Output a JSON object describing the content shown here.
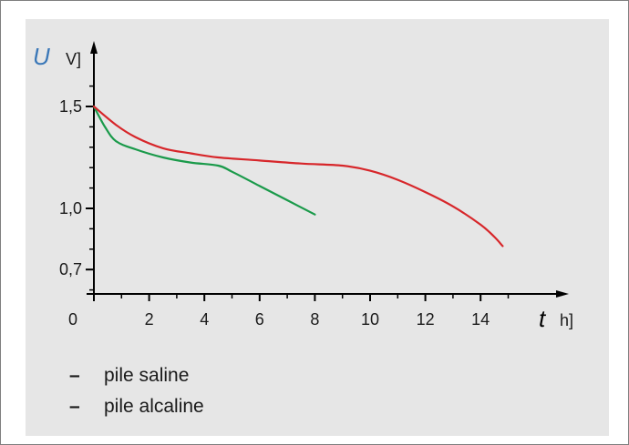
{
  "chart_data": {
    "type": "line",
    "ylabel": "U",
    "yunit": "V]",
    "xlabel": "t",
    "xunit": "h]",
    "xlim": [
      0,
      16.5
    ],
    "ylim": [
      0.6,
      1.7
    ],
    "x_ticks": [
      2,
      4,
      6,
      8,
      10,
      12,
      14
    ],
    "x_origin_label": "0",
    "y_ticks": [
      0.7,
      1.0,
      1.5
    ],
    "y_tick_labels": [
      "0,7",
      "1,0",
      "1,5"
    ],
    "series": [
      {
        "name": "pile saline",
        "color": "#1a9a4a",
        "points": [
          [
            0,
            1.5
          ],
          [
            0.4,
            1.4
          ],
          [
            0.8,
            1.33
          ],
          [
            1.5,
            1.29
          ],
          [
            2.5,
            1.25
          ],
          [
            3.5,
            1.225
          ],
          [
            4.5,
            1.21
          ],
          [
            5,
            1.18
          ],
          [
            6,
            1.11
          ],
          [
            7,
            1.04
          ],
          [
            8,
            0.97
          ]
        ]
      },
      {
        "name": "pile alcaline",
        "color": "#d7262a",
        "points": [
          [
            0,
            1.5
          ],
          [
            0.8,
            1.41
          ],
          [
            1.5,
            1.35
          ],
          [
            2.5,
            1.295
          ],
          [
            3.5,
            1.27
          ],
          [
            4.5,
            1.25
          ],
          [
            6,
            1.235
          ],
          [
            7.5,
            1.22
          ],
          [
            9,
            1.21
          ],
          [
            10,
            1.185
          ],
          [
            11,
            1.14
          ],
          [
            12,
            1.08
          ],
          [
            13,
            1.01
          ],
          [
            14,
            0.92
          ],
          [
            14.5,
            0.86
          ],
          [
            14.8,
            0.815
          ]
        ]
      }
    ],
    "legend": [
      {
        "marker": "–",
        "label": "pile saline"
      },
      {
        "marker": "–",
        "label": "pile alcaline"
      }
    ],
    "axis_var_color": "#3b78b8",
    "axis_color": "#000000"
  }
}
